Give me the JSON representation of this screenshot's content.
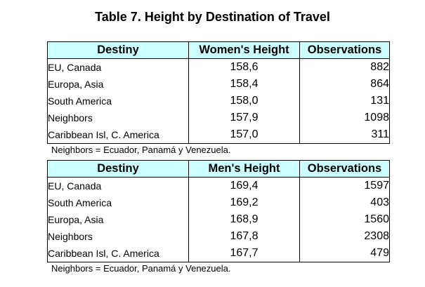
{
  "title": "Table 7. Height by Destination of Travel",
  "women_table": {
    "headers": [
      "Destiny",
      "Women's Height",
      "Observations"
    ],
    "rows": [
      {
        "destiny": "EU, Canada",
        "height": "158,6",
        "observations": "882"
      },
      {
        "destiny": "Europa, Asia",
        "height": "158,4",
        "observations": "864"
      },
      {
        "destiny": "South America",
        "height": "158,0",
        "observations": "131"
      },
      {
        "destiny": "Neighbors",
        "height": "157,9",
        "observations": "1098"
      },
      {
        "destiny": "Caribbean Isl, C. America",
        "height": "157,0",
        "observations": "311"
      }
    ],
    "note": "Neighbors = Ecuador, Panamá y Venezuela."
  },
  "men_table": {
    "headers": [
      "Destiny",
      "Men's Height",
      "Observations"
    ],
    "rows": [
      {
        "destiny": "EU, Canada",
        "height": "169,4",
        "observations": "1597"
      },
      {
        "destiny": "South America",
        "height": "169,2",
        "observations": "403"
      },
      {
        "destiny": "Europa, Asia",
        "height": "168,9",
        "observations": "1560"
      },
      {
        "destiny": "Neighbors",
        "height": "167,8",
        "observations": "2308"
      },
      {
        "destiny": "Caribbean Isl, C. America",
        "height": "167,7",
        "observations": "479"
      }
    ],
    "note": "Neighbors = Ecuador, Panamá y Venezuela."
  },
  "colors": {
    "header_background": "#ccffff",
    "border": "#000000"
  }
}
